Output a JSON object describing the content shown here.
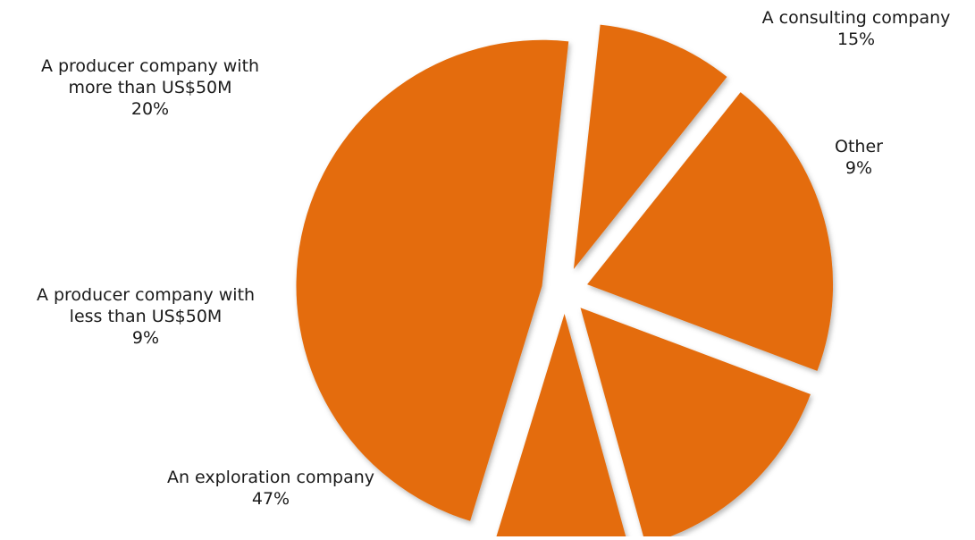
{
  "chart_data": {
    "type": "pie",
    "title": "",
    "exploded": true,
    "slice_color": "#E46C0A",
    "slices": [
      {
        "label_lines": [
          "An exploration company"
        ],
        "value": 47,
        "value_label": "47%"
      },
      {
        "label_lines": [
          "A producer company with",
          "less than US$50M"
        ],
        "value": 9,
        "value_label": "9%"
      },
      {
        "label_lines": [
          "A producer company with",
          "more than US$50M"
        ],
        "value": 20,
        "value_label": "20%"
      },
      {
        "label_lines": [
          "A consulting company"
        ],
        "value": 15,
        "value_label": "15%"
      },
      {
        "label_lines": [
          "Other"
        ],
        "value": 9,
        "value_label": "9%"
      }
    ]
  }
}
